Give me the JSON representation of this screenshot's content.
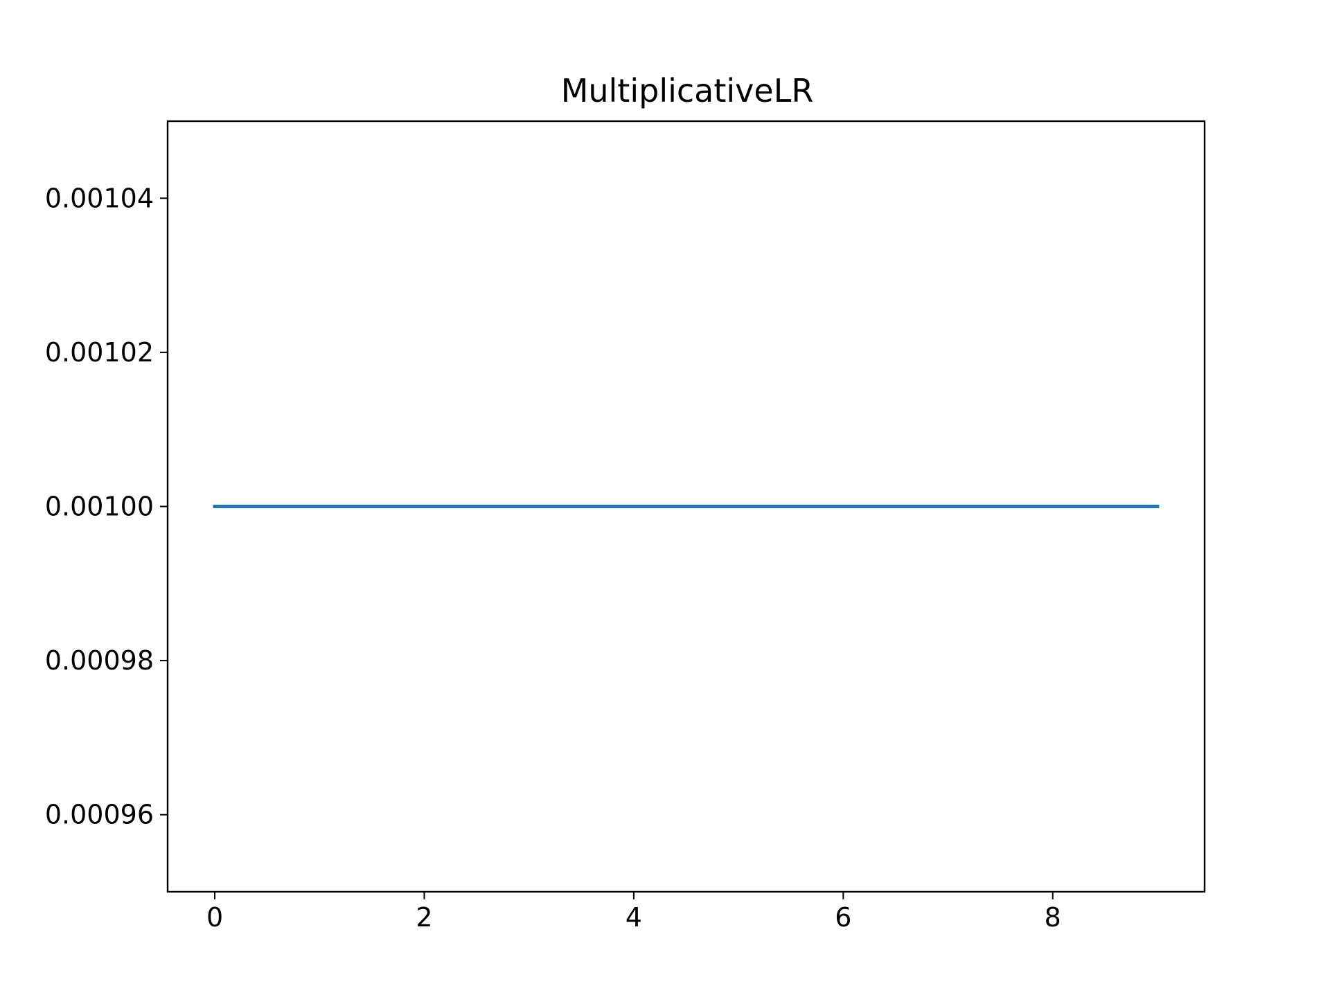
{
  "chart_data": {
    "type": "line",
    "title": "MultiplicativeLR",
    "xlabel": "",
    "ylabel": "",
    "x": [
      0,
      1,
      2,
      3,
      4,
      5,
      6,
      7,
      8,
      9
    ],
    "series": [
      {
        "values": [
          0.001,
          0.001,
          0.001,
          0.001,
          0.001,
          0.001,
          0.001,
          0.001,
          0.001,
          0.001
        ],
        "color": "#1f77b4"
      }
    ],
    "xlim": [
      -0.45,
      9.45
    ],
    "ylim": [
      0.00095,
      0.00105
    ],
    "xticks": [
      0,
      2,
      4,
      6,
      8
    ],
    "xtick_labels": [
      "0",
      "2",
      "4",
      "6",
      "8"
    ],
    "yticks": [
      0.00096,
      0.00098,
      0.001,
      0.00102,
      0.00104
    ],
    "ytick_labels": [
      "0.00096",
      "0.00098",
      "0.00100",
      "0.00102",
      "0.00104"
    ],
    "grid": false,
    "legend": "none"
  }
}
